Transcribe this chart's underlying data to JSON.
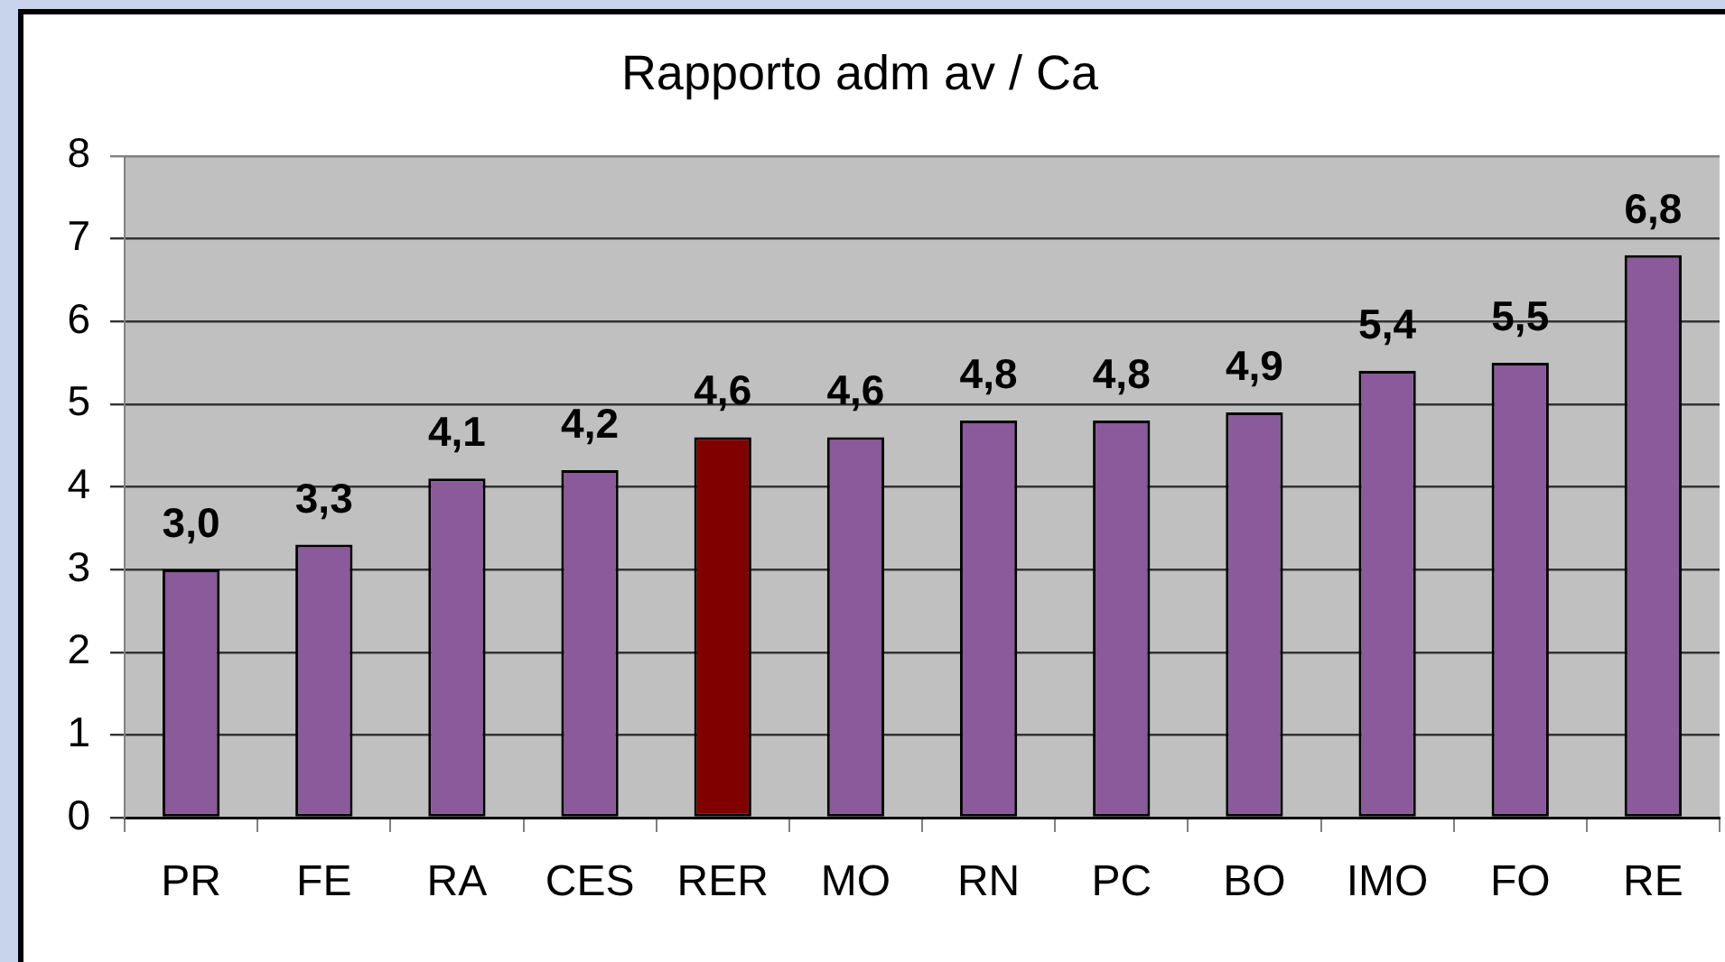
{
  "chart_data": {
    "type": "bar",
    "title": "Rapporto adm av / Ca",
    "categories": [
      "PR",
      "FE",
      "RA",
      "CES",
      "RER",
      "MO",
      "RN",
      "PC",
      "BO",
      "IMO",
      "FO",
      "RE"
    ],
    "values": [
      3.0,
      3.3,
      4.1,
      4.2,
      4.6,
      4.6,
      4.8,
      4.8,
      4.9,
      5.4,
      5.5,
      6.8
    ],
    "colors": [
      "#8a5a9a",
      "#8a5a9a",
      "#8a5a9a",
      "#8a5a9a",
      "#800000",
      "#8a5a9a",
      "#8a5a9a",
      "#8a5a9a",
      "#8a5a9a",
      "#8a5a9a",
      "#8a5a9a",
      "#8a5a9a"
    ],
    "value_labels": [
      "3,0",
      "3,3",
      "4,1",
      "4,2",
      "4,6",
      "4,6",
      "4,8",
      "4,8",
      "4,9",
      "5,4",
      "5,5",
      "6,8"
    ],
    "ylim": [
      0,
      8
    ],
    "yticks": [
      0,
      1,
      2,
      3,
      4,
      5,
      6,
      7,
      8
    ],
    "grid": "y"
  }
}
